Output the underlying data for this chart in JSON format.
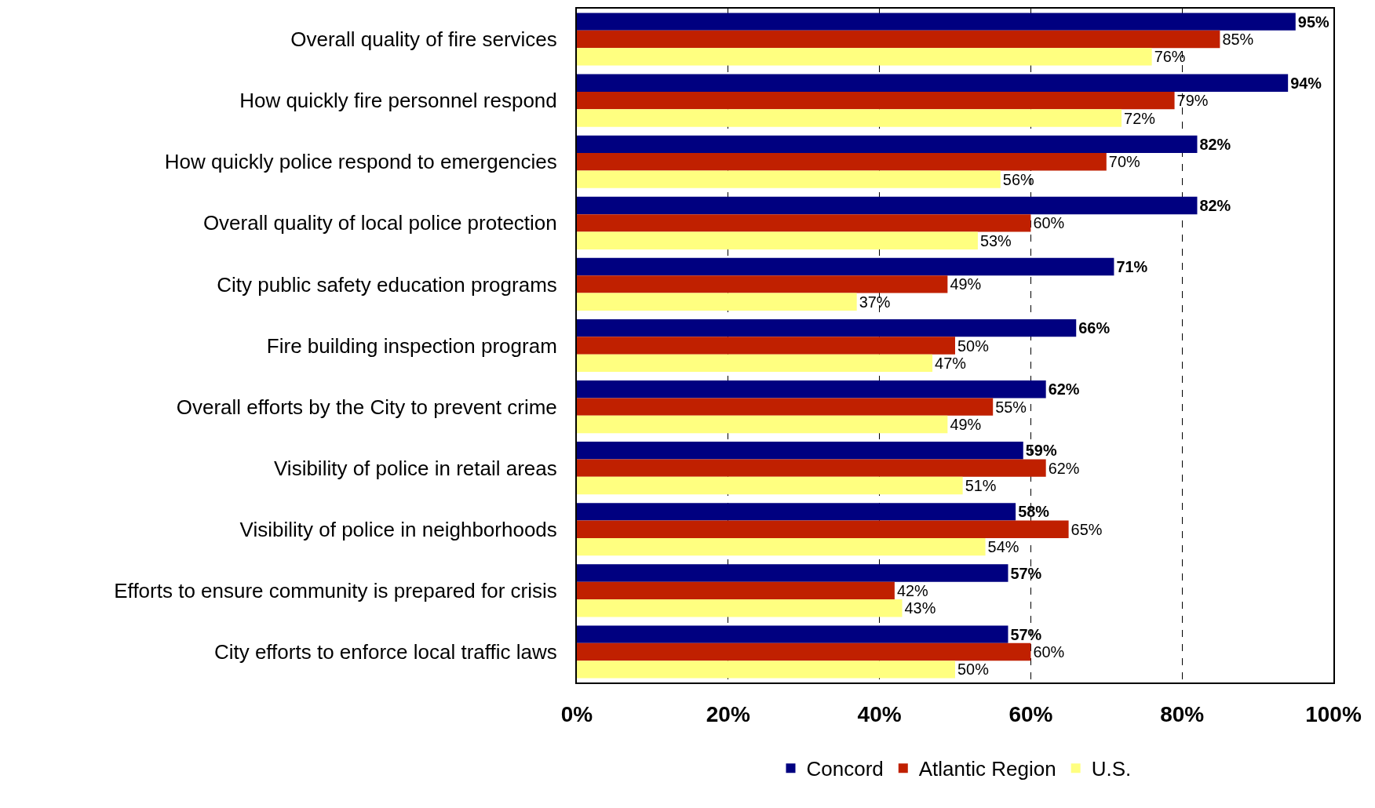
{
  "chart_data": {
    "type": "bar",
    "orientation": "horizontal",
    "categories": [
      "Overall quality of fire services",
      "How quickly fire personnel respond",
      "How quickly police respond to emergencies",
      "Overall quality of local police protection",
      "City public safety education programs",
      "Fire building inspection program",
      "Overall efforts by the City to prevent crime",
      "Visibility of police in retail areas",
      "Visibility of police in neighborhoods",
      "Efforts to ensure community is prepared for crisis",
      "City efforts to enforce local traffic laws"
    ],
    "series": [
      {
        "name": "Concord",
        "color": "#000080",
        "values": [
          95,
          94,
          82,
          82,
          71,
          66,
          62,
          59,
          58,
          57,
          57
        ],
        "value_labels": [
          "95%",
          "94%",
          "82%",
          "82%",
          "71%",
          "66%",
          "62%",
          "59%",
          "58%",
          "57%",
          "57%"
        ]
      },
      {
        "name": "Atlantic Region",
        "color": "#c02000",
        "values": [
          85,
          79,
          70,
          60,
          49,
          50,
          55,
          62,
          65,
          42,
          60
        ],
        "value_labels": [
          "85%",
          "79%",
          "70%",
          "60%",
          "49%",
          "50%",
          "55%",
          "62%",
          "65%",
          "42%",
          "60%"
        ]
      },
      {
        "name": "U.S.",
        "color": "#ffff80",
        "values": [
          76,
          72,
          56,
          53,
          37,
          47,
          49,
          51,
          54,
          43,
          50
        ],
        "value_labels": [
          "76%",
          "72%",
          "56%",
          "53%",
          "37%",
          "47%",
          "49%",
          "51%",
          "54%",
          "43%",
          "50%"
        ]
      }
    ],
    "xlim": [
      0,
      100
    ],
    "xticks": [
      {
        "value": 0,
        "label": "0%"
      },
      {
        "value": 20,
        "label": "20%"
      },
      {
        "value": 40,
        "label": "40%"
      },
      {
        "value": 60,
        "label": "60%"
      },
      {
        "value": 80,
        "label": "80%"
      },
      {
        "value": 100,
        "label": "100%"
      }
    ],
    "grid": "x",
    "legend": "bottom"
  }
}
